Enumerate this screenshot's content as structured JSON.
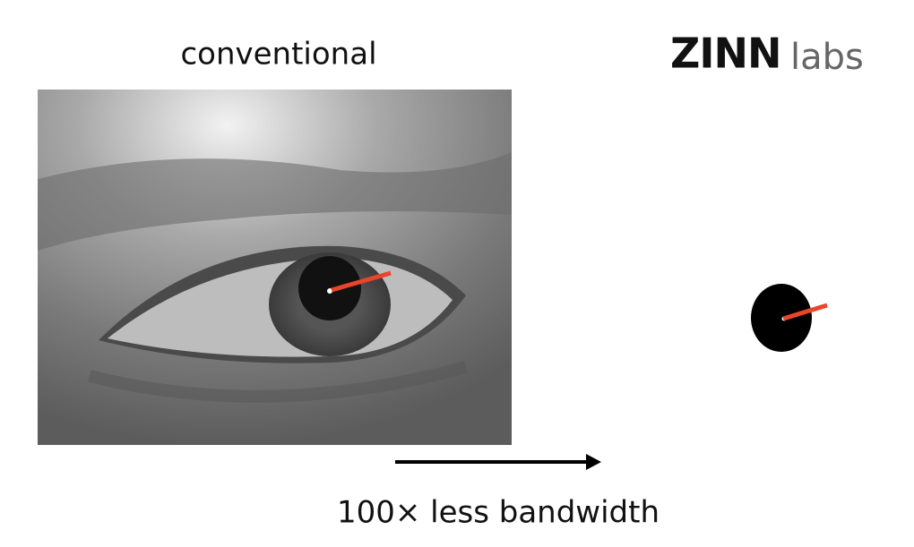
{
  "header": {
    "left_label": "conventional",
    "logo_brand": "ZINN",
    "logo_suffix": "labs"
  },
  "caption": "100× less bandwidth"
}
